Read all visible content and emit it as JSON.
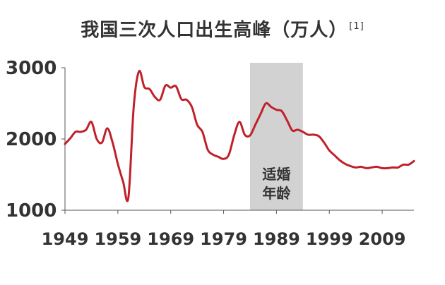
{
  "chart_data": {
    "type": "line",
    "title": "我国三次人口出生高峰（万人）",
    "title_ref": "[1]",
    "xlabel": "",
    "ylabel": "",
    "xlim": [
      1949,
      2015
    ],
    "ylim": [
      1000,
      3000
    ],
    "x_ticks": [
      1949,
      1959,
      1969,
      1979,
      1989,
      1999,
      2009
    ],
    "y_ticks": [
      1000,
      2000,
      3000
    ],
    "grid": false,
    "line_color": "#c0202a",
    "shaded_region": {
      "x_start": 1984,
      "x_end": 1994,
      "label_lines": [
        "适婚",
        "年龄"
      ],
      "color": "#d2d2d2"
    },
    "series": [
      {
        "x": [
          1949,
          1950,
          1951,
          1952,
          1953,
          1954,
          1955,
          1956,
          1957,
          1958,
          1959,
          1960,
          1961,
          1962,
          1963,
          1964,
          1965,
          1966,
          1967,
          1968,
          1969,
          1970,
          1971,
          1972,
          1973,
          1974,
          1975,
          1976,
          1977,
          1978,
          1979,
          1980,
          1981,
          1982,
          1983,
          1984,
          1985,
          1986,
          1987,
          1988,
          1989,
          1990,
          1991,
          1992,
          1993,
          1994,
          1995,
          1996,
          1997,
          1998,
          1999,
          2000,
          2001,
          2002,
          2003,
          2004,
          2005,
          2006,
          2007,
          2008,
          2009,
          2010,
          2011,
          2012,
          2013,
          2014,
          2015
        ],
        "values": [
          1930,
          2010,
          2100,
          2100,
          2130,
          2240,
          2000,
          1950,
          2150,
          1950,
          1650,
          1400,
          1180,
          2450,
          2950,
          2730,
          2700,
          2590,
          2550,
          2750,
          2720,
          2740,
          2560,
          2550,
          2450,
          2200,
          2100,
          1850,
          1780,
          1750,
          1720,
          1780,
          2050,
          2240,
          2060,
          2050,
          2200,
          2350,
          2500,
          2450,
          2410,
          2390,
          2260,
          2120,
          2130,
          2100,
          2060,
          2060,
          2040,
          1950,
          1840,
          1770,
          1700,
          1650,
          1620,
          1600,
          1610,
          1590,
          1600,
          1610,
          1590,
          1590,
          1600,
          1600,
          1640,
          1640,
          1690
        ]
      }
    ]
  }
}
